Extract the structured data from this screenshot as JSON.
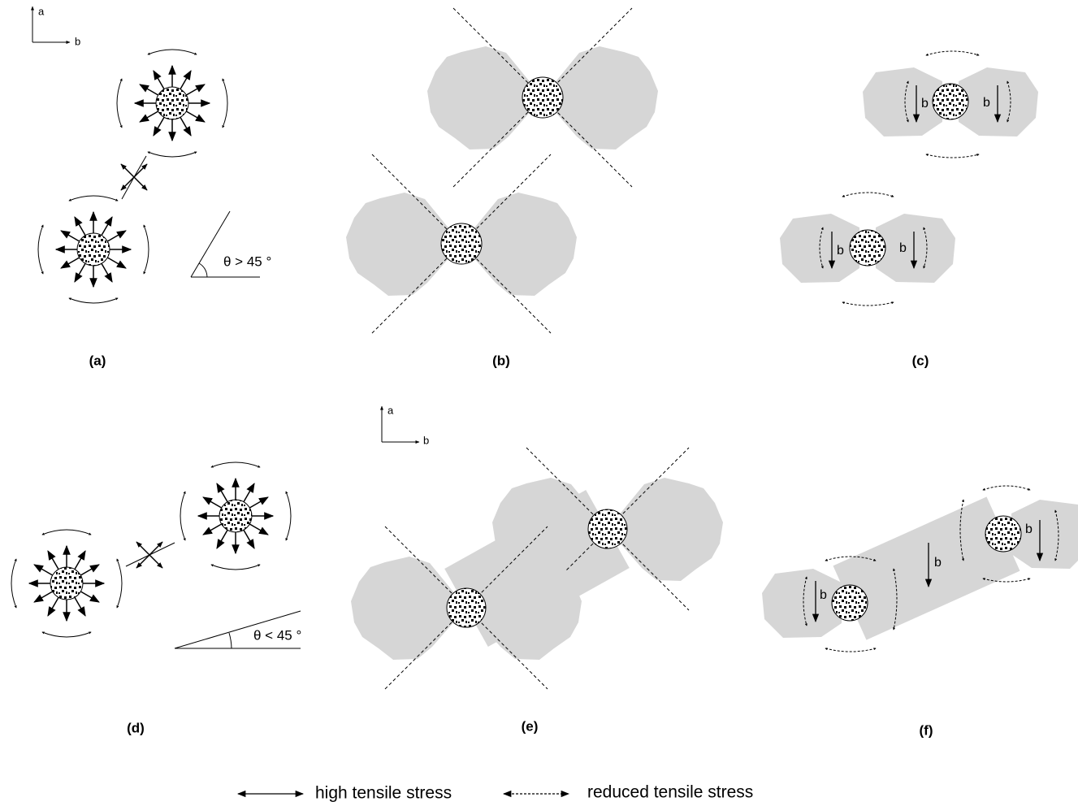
{
  "axes_keys": [
    {
      "up": "a",
      "right": "b"
    },
    {
      "up": "a",
      "right": "b"
    }
  ],
  "panels": [
    {
      "label": "(a)",
      "angle": "θ > 45 °"
    },
    {
      "label": "(b)"
    },
    {
      "label": "(c)",
      "burgers": [
        "b",
        "b",
        "b",
        "b"
      ]
    },
    {
      "label": "(d)",
      "angle": "θ < 45 °"
    },
    {
      "label": "(e)"
    },
    {
      "label": "(f)",
      "burgers": [
        "b",
        "b",
        "b"
      ]
    }
  ],
  "legend": [
    {
      "label": "high tensile stress"
    },
    {
      "label": "reduced tensile stress"
    }
  ]
}
